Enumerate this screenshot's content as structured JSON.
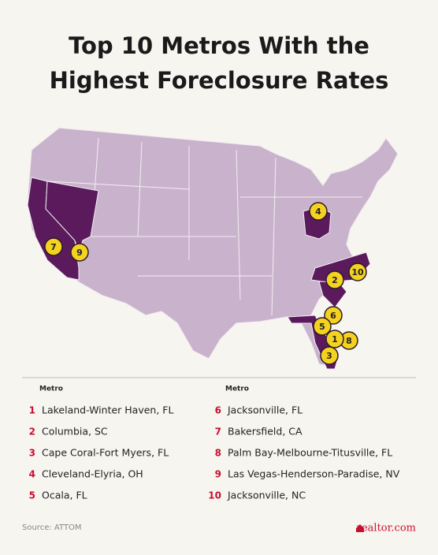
{
  "header": {
    "title_line1": "Top 10 Metros With the",
    "title_line2": "Highest Foreclosure Rates"
  },
  "table": {
    "column_header_left": "Metro",
    "column_header_right": "Metro",
    "metros": [
      {
        "rank": 1,
        "name": "Lakeland-Winter Haven, FL"
      },
      {
        "rank": 2,
        "name": "Columbia, SC"
      },
      {
        "rank": 3,
        "name": "Cape Coral-Fort Myers, FL"
      },
      {
        "rank": 4,
        "name": "Cleveland-Elyria, OH"
      },
      {
        "rank": 5,
        "name": "Ocala, FL"
      },
      {
        "rank": 6,
        "name": "Jacksonville, FL"
      },
      {
        "rank": 7,
        "name": "Bakersfield, CA"
      },
      {
        "rank": 8,
        "name": "Palm Bay-Melbourne-Titusville, FL"
      },
      {
        "rank": 9,
        "name": "Las Vegas-Henderson-Paradise, NV"
      },
      {
        "rank": 10,
        "name": "Jacksonville, NC"
      }
    ]
  },
  "footer": {
    "source": "Source: ATTOM",
    "logo": "realtor.com"
  }
}
